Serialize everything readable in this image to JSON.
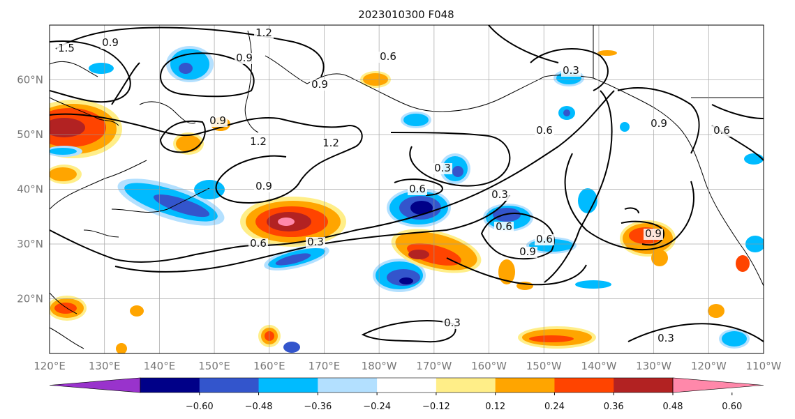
{
  "title": "2023010300 F048",
  "map": {
    "lon_range": [
      120,
      250
    ],
    "lat_range": [
      10,
      70
    ],
    "gridlines": true,
    "x_ticks": [
      "120°E",
      "130°E",
      "140°E",
      "150°E",
      "160°E",
      "170°E",
      "180°W",
      "170°W",
      "160°W",
      "150°W",
      "140°W",
      "130°W",
      "120°W",
      "110°W"
    ],
    "y_ticks": [
      "20°N",
      "30°N",
      "40°N",
      "50°N",
      "60°N"
    ]
  },
  "colorbar": {
    "ticks": [
      "−0.60",
      "−0.48",
      "−0.36",
      "−0.24",
      "−0.12",
      "0.12",
      "0.24",
      "0.36",
      "0.48",
      "0.60"
    ],
    "colors": [
      "#9933cc",
      "#000088",
      "#3355cc",
      "#00bbff",
      "#b3e0ff",
      "#ffffff",
      "#ffee88",
      "#ffa500",
      "#ff4400",
      "#b22222",
      "#ff88aa"
    ]
  },
  "contour_labels": [
    "1.5",
    "0.9",
    "1.2",
    "0.9",
    "0.6",
    "0.9",
    "0.3",
    "0.9",
    "1.2",
    "1.2",
    "0.9",
    "0.6",
    "0.3",
    "0.6",
    "0.3",
    "0.9",
    "0.6",
    "0.6",
    "0.3",
    "0.6",
    "0.3",
    "0.9",
    "0.3",
    "0.9",
    "0.6"
  ]
}
